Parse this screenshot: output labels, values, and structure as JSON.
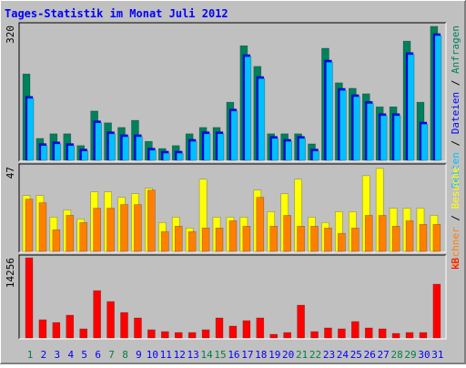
{
  "title": "Tages-Statistik im Monat Juli 2012",
  "separator": " / ",
  "chart_data": [
    {
      "type": "bar",
      "ylim": [
        0,
        320
      ],
      "yticks": [
        320
      ],
      "series": [
        {
          "name": "Anfragen",
          "color": "#00805c",
          "values": [
            205,
            52,
            63,
            63,
            35,
            117,
            89,
            78,
            95,
            45,
            28,
            35,
            63,
            78,
            78,
            138,
            272,
            223,
            63,
            63,
            63,
            39,
            266,
            184,
            171,
            158,
            127,
            127,
            283,
            138,
            318
          ]
        },
        {
          "name": "Dateien",
          "color": "#0000ff",
          "values": [
            152,
            40,
            44,
            40,
            27,
            94,
            68,
            61,
            61,
            29,
            22,
            22,
            50,
            68,
            68,
            122,
            251,
            199,
            57,
            50,
            57,
            27,
            238,
            171,
            156,
            140,
            111,
            111,
            256,
            91,
            301
          ]
        },
        {
          "name": "Seiten",
          "color": "#00c0ff",
          "values": [
            147,
            35,
            39,
            35,
            22,
            89,
            63,
            56,
            56,
            24,
            17,
            17,
            45,
            63,
            63,
            117,
            246,
            194,
            52,
            45,
            52,
            22,
            233,
            166,
            151,
            135,
            106,
            106,
            251,
            86,
            296
          ]
        }
      ]
    },
    {
      "type": "bar",
      "ylim": [
        0,
        47
      ],
      "yticks": [
        47
      ],
      "series": [
        {
          "name": "Besuche",
          "color": "#ffff00",
          "values": [
            31,
            31,
            19,
            23,
            18,
            33,
            33,
            30,
            32,
            35,
            16,
            19,
            13,
            40,
            19,
            19,
            19,
            34,
            22,
            32,
            40,
            19,
            16,
            22,
            22,
            42,
            46,
            24,
            24,
            24,
            20
          ]
        },
        {
          "name": "Rechner",
          "color": "#ff8000",
          "values": [
            29,
            27,
            12,
            20,
            16,
            24,
            24,
            26,
            26,
            34,
            11,
            14,
            11,
            13,
            13,
            17,
            14,
            30,
            14,
            20,
            14,
            14,
            13,
            10,
            13,
            20,
            20,
            14,
            17,
            15,
            15
          ]
        }
      ]
    },
    {
      "type": "bar",
      "ylim": [
        0,
        14256
      ],
      "yticks": [
        14256
      ],
      "categories": [
        "1",
        "2",
        "3",
        "4",
        "5",
        "6",
        "7",
        "8",
        "9",
        "10",
        "11",
        "12",
        "13",
        "14",
        "15",
        "16",
        "17",
        "18",
        "19",
        "20",
        "21",
        "22",
        "23",
        "24",
        "25",
        "26",
        "27",
        "28",
        "29",
        "30",
        "31"
      ],
      "category_colors": [
        "#008040",
        "#0000ff",
        "#0000ff",
        "#0000ff",
        "#0000ff",
        "#0000ff",
        "#008040",
        "#008040",
        "#0000ff",
        "#0000ff",
        "#0000ff",
        "#0000ff",
        "#0000ff",
        "#008040",
        "#008040",
        "#0000ff",
        "#0000ff",
        "#0000ff",
        "#0000ff",
        "#0000ff",
        "#008040",
        "#008040",
        "#0000ff",
        "#0000ff",
        "#0000ff",
        "#0000ff",
        "#0000ff",
        "#008040",
        "#008040",
        "#0000ff",
        "#0000ff"
      ],
      "series": [
        {
          "name": "kB",
          "color": "#ff0000",
          "values": [
            14256,
            3240,
            2750,
            4050,
            1620,
            8420,
            6480,
            4530,
            3560,
            1460,
            1130,
            970,
            970,
            1460,
            3560,
            2110,
            3080,
            3560,
            650,
            970,
            5830,
            1130,
            1780,
            1620,
            2920,
            1780,
            1620,
            810,
            970,
            970,
            9560
          ]
        }
      ]
    }
  ]
}
